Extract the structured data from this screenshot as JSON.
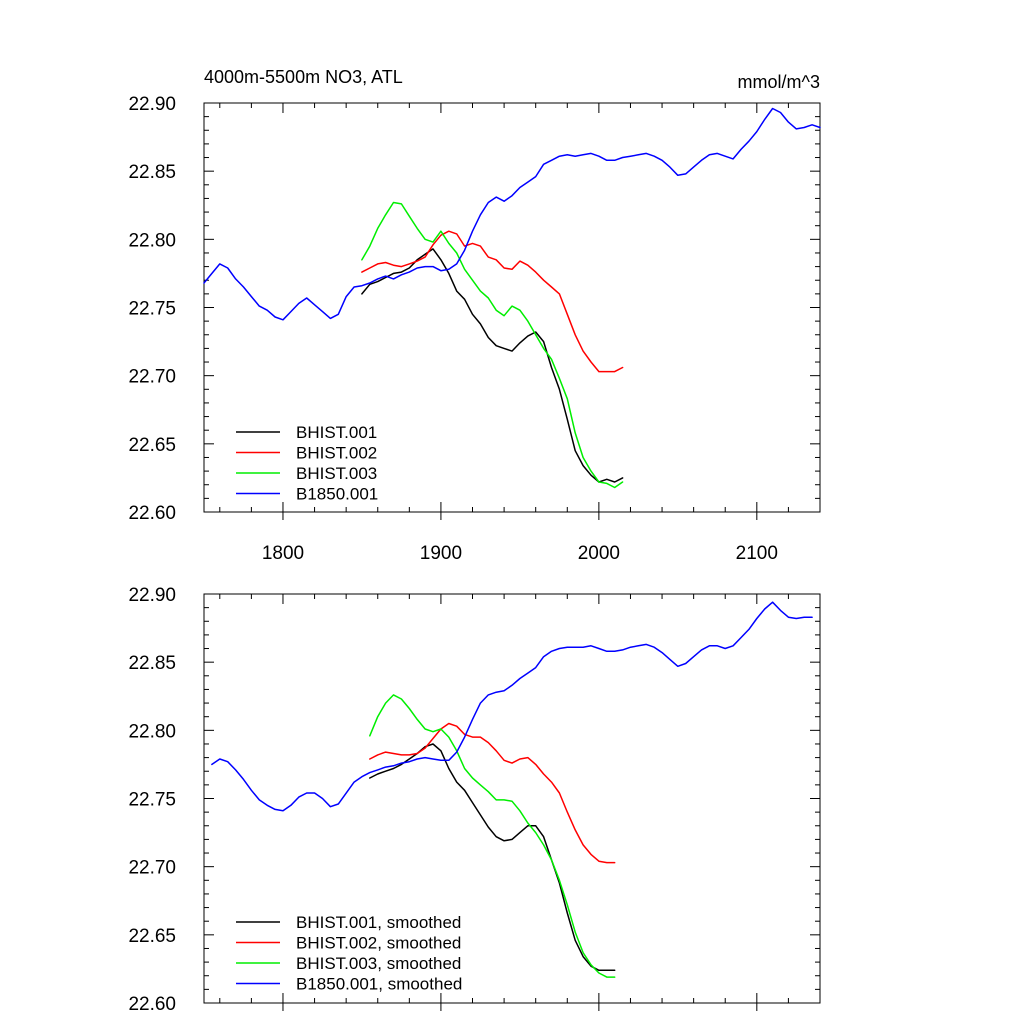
{
  "chart_data": [
    {
      "type": "line",
      "title": "4000m-5500m NO3, ATL",
      "units": "mmol/m^3",
      "xlabel": "",
      "ylabel": "",
      "xlim": [
        1750,
        2140
      ],
      "ylim": [
        22.6,
        22.9
      ],
      "xticks": [
        1800,
        1900,
        2000,
        2100
      ],
      "xtick_labels": [
        "1800",
        "1900",
        "2000",
        "2100"
      ],
      "yticks": [
        22.6,
        22.65,
        22.7,
        22.75,
        22.8,
        22.85,
        22.9
      ],
      "ytick_labels": [
        "22.60",
        "22.65",
        "22.70",
        "22.75",
        "22.80",
        "22.85",
        "22.90"
      ],
      "grid": false,
      "legend_position": "bottom-left",
      "series": [
        {
          "name": "BHIST.001",
          "color": "#000000",
          "x": [
            1850,
            1855,
            1860,
            1865,
            1870,
            1875,
            1880,
            1885,
            1890,
            1895,
            1900,
            1905,
            1910,
            1915,
            1920,
            1925,
            1930,
            1935,
            1940,
            1945,
            1950,
            1955,
            1960,
            1965,
            1970,
            1975,
            1980,
            1985,
            1990,
            1995,
            2000,
            2005,
            2010,
            2015
          ],
          "y": [
            22.76,
            22.767,
            22.769,
            22.772,
            22.775,
            22.776,
            22.779,
            22.785,
            22.789,
            22.793,
            22.785,
            22.775,
            22.762,
            22.756,
            22.745,
            22.738,
            22.728,
            22.722,
            22.72,
            22.718,
            22.724,
            22.729,
            22.732,
            22.725,
            22.706,
            22.69,
            22.668,
            22.645,
            22.634,
            22.627,
            22.622,
            22.624,
            22.622,
            22.625
          ]
        },
        {
          "name": "BHIST.002",
          "color": "#ff0000",
          "x": [
            1850,
            1855,
            1860,
            1865,
            1870,
            1875,
            1880,
            1885,
            1890,
            1895,
            1900,
            1905,
            1910,
            1915,
            1920,
            1925,
            1930,
            1935,
            1940,
            1945,
            1950,
            1955,
            1960,
            1965,
            1970,
            1975,
            1980,
            1985,
            1990,
            1995,
            2000,
            2005,
            2010,
            2015
          ],
          "y": [
            22.776,
            22.779,
            22.782,
            22.783,
            22.781,
            22.78,
            22.782,
            22.784,
            22.787,
            22.796,
            22.803,
            22.806,
            22.804,
            22.795,
            22.797,
            22.795,
            22.787,
            22.785,
            22.779,
            22.778,
            22.784,
            22.781,
            22.776,
            22.77,
            22.765,
            22.76,
            22.745,
            22.73,
            22.718,
            22.71,
            22.703,
            22.703,
            22.703,
            22.706
          ]
        },
        {
          "name": "BHIST.003",
          "color": "#00ee00",
          "x": [
            1850,
            1855,
            1860,
            1865,
            1870,
            1875,
            1880,
            1885,
            1890,
            1895,
            1900,
            1905,
            1910,
            1915,
            1920,
            1925,
            1930,
            1935,
            1940,
            1945,
            1950,
            1955,
            1960,
            1965,
            1970,
            1975,
            1980,
            1985,
            1990,
            1995,
            2000,
            2005,
            2010,
            2015
          ],
          "y": [
            22.785,
            22.795,
            22.808,
            22.818,
            22.827,
            22.826,
            22.817,
            22.808,
            22.8,
            22.798,
            22.806,
            22.797,
            22.79,
            22.778,
            22.77,
            22.762,
            22.757,
            22.748,
            22.744,
            22.751,
            22.748,
            22.74,
            22.73,
            22.72,
            22.712,
            22.698,
            22.683,
            22.658,
            22.64,
            22.63,
            22.622,
            22.621,
            22.618,
            22.622
          ]
        },
        {
          "name": "B1850.001",
          "color": "#0000ff",
          "x": [
            1750,
            1755,
            1760,
            1765,
            1770,
            1775,
            1780,
            1785,
            1790,
            1795,
            1800,
            1805,
            1810,
            1815,
            1820,
            1825,
            1830,
            1835,
            1840,
            1845,
            1850,
            1855,
            1860,
            1865,
            1870,
            1875,
            1880,
            1885,
            1890,
            1895,
            1900,
            1905,
            1910,
            1915,
            1920,
            1925,
            1930,
            1935,
            1940,
            1945,
            1950,
            1955,
            1960,
            1965,
            1970,
            1975,
            1980,
            1985,
            1990,
            1995,
            2000,
            2005,
            2010,
            2015,
            2020,
            2025,
            2030,
            2035,
            2040,
            2045,
            2050,
            2055,
            2060,
            2065,
            2070,
            2075,
            2080,
            2085,
            2090,
            2095,
            2100,
            2105,
            2110,
            2115,
            2120,
            2125,
            2130,
            2135,
            2140
          ],
          "y": [
            22.768,
            22.775,
            22.782,
            22.779,
            22.771,
            22.765,
            22.758,
            22.751,
            22.748,
            22.743,
            22.741,
            22.747,
            22.753,
            22.757,
            22.752,
            22.747,
            22.742,
            22.745,
            22.758,
            22.765,
            22.766,
            22.768,
            22.771,
            22.773,
            22.771,
            22.774,
            22.776,
            22.779,
            22.78,
            22.78,
            22.777,
            22.778,
            22.782,
            22.792,
            22.806,
            22.818,
            22.827,
            22.831,
            22.828,
            22.832,
            22.838,
            22.842,
            22.846,
            22.855,
            22.858,
            22.861,
            22.862,
            22.861,
            22.862,
            22.863,
            22.861,
            22.858,
            22.858,
            22.86,
            22.861,
            22.862,
            22.863,
            22.861,
            22.858,
            22.853,
            22.847,
            22.848,
            22.853,
            22.858,
            22.862,
            22.863,
            22.861,
            22.859,
            22.866,
            22.872,
            22.879,
            22.888,
            22.896,
            22.893,
            22.886,
            22.881,
            22.882,
            22.884,
            22.882
          ]
        }
      ]
    },
    {
      "type": "line",
      "title": "",
      "xlabel": "",
      "ylabel": "",
      "xlim": [
        1750,
        2140
      ],
      "ylim": [
        22.6,
        22.9
      ],
      "xticks": [
        1800,
        1900,
        2000,
        2100
      ],
      "yticks": [
        22.6,
        22.65,
        22.7,
        22.75,
        22.8,
        22.85,
        22.9
      ],
      "ytick_labels": [
        "22.60",
        "22.65",
        "22.70",
        "22.75",
        "22.80",
        "22.85",
        "22.90"
      ],
      "grid": false,
      "legend_position": "bottom-left",
      "series": [
        {
          "name": "BHIST.001, smoothed",
          "color": "#000000",
          "x": [
            1855,
            1860,
            1865,
            1870,
            1875,
            1880,
            1885,
            1890,
            1895,
            1900,
            1905,
            1910,
            1915,
            1920,
            1925,
            1930,
            1935,
            1940,
            1945,
            1950,
            1955,
            1960,
            1965,
            1970,
            1975,
            1980,
            1985,
            1990,
            1995,
            2000,
            2005,
            2010
          ],
          "y": [
            22.765,
            22.768,
            22.77,
            22.772,
            22.775,
            22.779,
            22.783,
            22.788,
            22.79,
            22.785,
            22.772,
            22.762,
            22.756,
            22.747,
            22.738,
            22.729,
            22.722,
            22.719,
            22.72,
            22.725,
            22.73,
            22.73,
            22.722,
            22.705,
            22.688,
            22.666,
            22.646,
            22.634,
            22.627,
            22.624,
            22.624,
            22.624
          ]
        },
        {
          "name": "BHIST.002, smoothed",
          "color": "#ff0000",
          "x": [
            1855,
            1860,
            1865,
            1870,
            1875,
            1880,
            1885,
            1890,
            1895,
            1900,
            1905,
            1910,
            1915,
            1920,
            1925,
            1930,
            1935,
            1940,
            1945,
            1950,
            1955,
            1960,
            1965,
            1970,
            1975,
            1980,
            1985,
            1990,
            1995,
            2000,
            2005,
            2010
          ],
          "y": [
            22.779,
            22.782,
            22.784,
            22.783,
            22.782,
            22.782,
            22.783,
            22.787,
            22.794,
            22.801,
            22.805,
            22.803,
            22.797,
            22.795,
            22.795,
            22.791,
            22.785,
            22.778,
            22.776,
            22.779,
            22.78,
            22.775,
            22.768,
            22.762,
            22.754,
            22.74,
            22.727,
            22.716,
            22.709,
            22.704,
            22.703,
            22.703
          ]
        },
        {
          "name": "BHIST.003, smoothed",
          "color": "#00ee00",
          "x": [
            1855,
            1860,
            1865,
            1870,
            1875,
            1880,
            1885,
            1890,
            1895,
            1900,
            1905,
            1910,
            1915,
            1920,
            1925,
            1930,
            1935,
            1940,
            1945,
            1950,
            1955,
            1960,
            1965,
            1970,
            1975,
            1980,
            1985,
            1990,
            1995,
            2000,
            2005,
            2010
          ],
          "y": [
            22.796,
            22.81,
            22.82,
            22.826,
            22.823,
            22.816,
            22.808,
            22.801,
            22.799,
            22.801,
            22.795,
            22.785,
            22.772,
            22.765,
            22.76,
            22.755,
            22.749,
            22.749,
            22.748,
            22.741,
            22.732,
            22.725,
            22.716,
            22.705,
            22.69,
            22.672,
            22.652,
            22.637,
            22.628,
            22.622,
            22.619,
            22.619
          ]
        },
        {
          "name": "B1850.001, smoothed",
          "color": "#0000ff",
          "x": [
            1755,
            1760,
            1765,
            1770,
            1775,
            1780,
            1785,
            1790,
            1795,
            1800,
            1805,
            1810,
            1815,
            1820,
            1825,
            1830,
            1835,
            1840,
            1845,
            1850,
            1855,
            1860,
            1865,
            1870,
            1875,
            1880,
            1885,
            1890,
            1895,
            1900,
            1905,
            1910,
            1915,
            1920,
            1925,
            1930,
            1935,
            1940,
            1945,
            1950,
            1955,
            1960,
            1965,
            1970,
            1975,
            1980,
            1985,
            1990,
            1995,
            2000,
            2005,
            2010,
            2015,
            2020,
            2025,
            2030,
            2035,
            2040,
            2045,
            2050,
            2055,
            2060,
            2065,
            2070,
            2075,
            2080,
            2085,
            2090,
            2095,
            2100,
            2105,
            2110,
            2115,
            2120,
            2125,
            2130,
            2135
          ],
          "y": [
            22.775,
            22.779,
            22.777,
            22.771,
            22.764,
            22.756,
            22.749,
            22.745,
            22.742,
            22.741,
            22.745,
            22.751,
            22.754,
            22.754,
            22.75,
            22.744,
            22.746,
            22.754,
            22.762,
            22.766,
            22.769,
            22.771,
            22.773,
            22.774,
            22.776,
            22.777,
            22.779,
            22.78,
            22.779,
            22.778,
            22.778,
            22.784,
            22.795,
            22.808,
            22.82,
            22.826,
            22.828,
            22.829,
            22.833,
            22.838,
            22.842,
            22.846,
            22.854,
            22.858,
            22.86,
            22.861,
            22.861,
            22.861,
            22.862,
            22.86,
            22.858,
            22.858,
            22.859,
            22.861,
            22.862,
            22.863,
            22.861,
            22.857,
            22.852,
            22.847,
            22.849,
            22.854,
            22.859,
            22.862,
            22.862,
            22.86,
            22.862,
            22.868,
            22.874,
            22.882,
            22.889,
            22.894,
            22.888,
            22.883,
            22.882,
            22.883,
            22.883
          ]
        }
      ]
    }
  ]
}
